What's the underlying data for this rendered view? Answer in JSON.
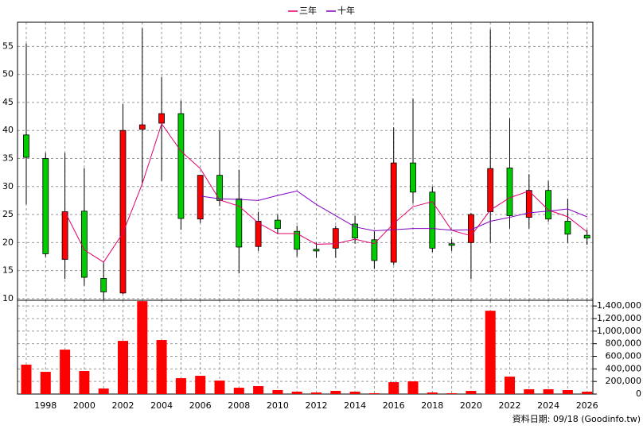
{
  "chart_data": {
    "type": "candlestick",
    "categories": [
      null,
      "1998",
      null,
      "2000",
      null,
      "2002",
      null,
      "2004",
      null,
      "2006",
      null,
      "2008",
      null,
      "2010",
      null,
      "2012",
      null,
      "2014",
      null,
      "2016",
      null,
      "2018",
      null,
      "2020",
      null,
      "2022",
      null,
      "2024",
      null,
      "2026"
    ],
    "open": [
      39.2,
      35,
      17,
      25.6,
      13.6,
      11,
      40.2,
      41.3,
      43,
      24.2,
      32,
      27.8,
      19.3,
      24,
      22,
      18.8,
      19,
      23.3,
      20.5,
      16.5,
      34.2,
      29,
      19.8,
      20,
      25.5,
      33.3,
      24.5,
      29.3,
      23.8,
      21.3
    ],
    "high": [
      55.5,
      36,
      36,
      33.3,
      16.4,
      44.7,
      58.2,
      49.5,
      45.3,
      32,
      40,
      33,
      25.5,
      25,
      23,
      20,
      23,
      24.8,
      22,
      40.5,
      45.7,
      30,
      20.6,
      25.3,
      58,
      42.2,
      32.2,
      31,
      27.8,
      22.3
    ],
    "low": [
      26.8,
      17.5,
      13.5,
      12.3,
      9.8,
      10.8,
      30.5,
      31,
      22.3,
      23.5,
      26.5,
      14.5,
      18.5,
      21.5,
      17.5,
      17.3,
      17.3,
      19.8,
      15.3,
      16,
      27,
      18.3,
      18.5,
      13.5,
      20,
      22.5,
      22.5,
      23.7,
      20,
      19.6
    ],
    "close": [
      35.2,
      18,
      25.5,
      13.8,
      11.2,
      40,
      41,
      43,
      24.3,
      32,
      27.5,
      19.2,
      23.8,
      22.5,
      18.8,
      18.5,
      22.5,
      20.8,
      16.8,
      34.2,
      29,
      19,
      19.5,
      25,
      33.2,
      24.8,
      29.3,
      24.2,
      21.5,
      20.8
    ],
    "up_color": "#ff0000",
    "down_color": "#00cc00",
    "series": [
      {
        "name": "三年",
        "color": "#e0006e",
        "values": [
          null,
          null,
          25.5,
          18.7,
          16.5,
          21.7,
          30.5,
          41.2,
          36.3,
          33.2,
          27.6,
          26.5,
          23.5,
          21.6,
          21.6,
          19.7,
          19.8,
          20.6,
          19.8,
          23.4,
          26.4,
          27.3,
          22.2,
          21.2,
          25.8,
          28.0,
          29.2,
          25.8,
          24.6,
          21.9
        ]
      },
      {
        "name": "十年",
        "color": "#8000c0",
        "values": [
          null,
          null,
          null,
          null,
          null,
          null,
          null,
          null,
          null,
          28.3,
          27.8,
          27.7,
          27.5,
          28.4,
          29.2,
          26.8,
          24.8,
          22.8,
          22.1,
          22.3,
          22.5,
          22.5,
          22.2,
          22.3,
          23.8,
          24.5,
          25.3,
          25.6,
          26.0,
          24.6
        ]
      }
    ],
    "ylim": [
      9.7,
      59.3
    ],
    "yticks": [
      10,
      15,
      20,
      25,
      30,
      35,
      40,
      45,
      50,
      55
    ],
    "volume": {
      "color": "#ff0000",
      "values": [
        467000,
        353000,
        706000,
        366000,
        88000,
        845000,
        1476000,
        858000,
        252000,
        290000,
        214000,
        100000,
        126000,
        63000,
        38000,
        25000,
        50000,
        38000,
        13000,
        189000,
        202000,
        25000,
        13000,
        50000,
        1324000,
        277000,
        76000,
        76000,
        63000,
        38000
      ],
      "ylim": [
        0,
        1490000
      ],
      "yticks": [
        0,
        {
          "value": 200000,
          "label": "200,000"
        },
        {
          "value": 400000,
          "label": "400,000"
        },
        {
          "value": 600000,
          "label": "600,000"
        },
        {
          "value": 800000,
          "label": "800,000"
        },
        {
          "value": 1000000,
          "label": "1,000,000"
        },
        {
          "value": 1200000,
          "label": "1,200,000"
        },
        {
          "value": 1400000,
          "label": "1,400,000"
        }
      ]
    },
    "grid": true,
    "footer": "資料日期: 09/18 (Goodinfo.tw)"
  }
}
